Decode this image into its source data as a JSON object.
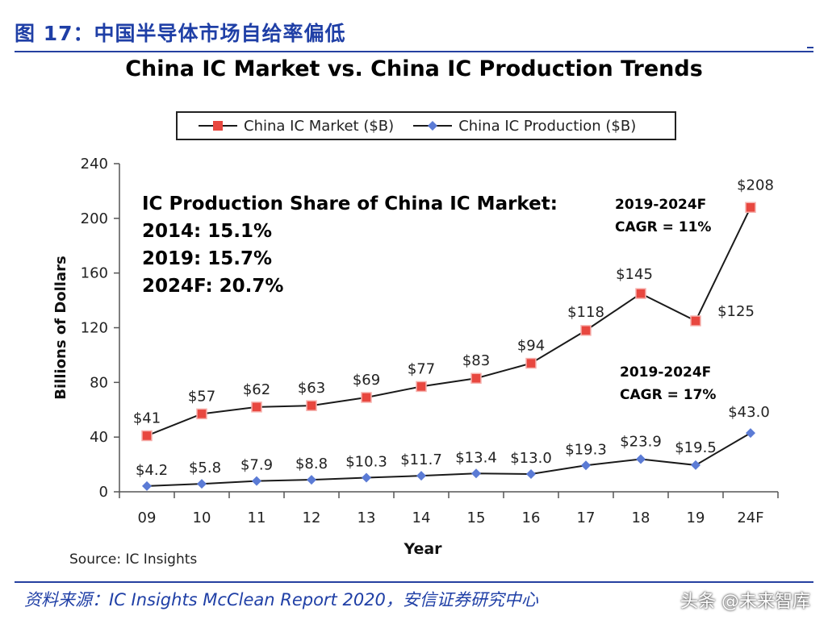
{
  "header": {
    "figure_label": "图 17：中国半导体市场自给率偏低"
  },
  "footer": {
    "source_note": "Source: IC Insights",
    "citation": "资料来源：IC Insights McClean Report 2020，安信证券研究中心",
    "watermark": "头条 @未来智库"
  },
  "annotations": {
    "share_title": "IC Production Share of China IC Market:",
    "share_2014": "2014: 15.1%",
    "share_2019": "2019: 15.7%",
    "share_2024": "2024F: 20.7%",
    "market_cagr_period": "2019-2024F",
    "market_cagr": "CAGR = 11%",
    "production_cagr_period": "2019-2024F",
    "production_cagr": "CAGR = 17%"
  },
  "colors": {
    "market": "#e8473f",
    "production": "#5b7bd5",
    "line": "#1a1a1a"
  },
  "chart_data": {
    "type": "line",
    "title": "China IC Market vs. China IC Production Trends",
    "xlabel": "Year",
    "ylabel": "Billions of Dollars",
    "ylim": [
      0,
      240
    ],
    "yticks": [
      0,
      40,
      80,
      120,
      160,
      200,
      240
    ],
    "categories": [
      "09",
      "10",
      "11",
      "12",
      "13",
      "14",
      "15",
      "16",
      "17",
      "18",
      "19",
      "24F"
    ],
    "legend_position": "top",
    "series": [
      {
        "name": "China IC Market ($B)",
        "marker": "square",
        "values": [
          41,
          57,
          62,
          63,
          69,
          77,
          83,
          94,
          118,
          145,
          125,
          208
        ],
        "labels": [
          "$41",
          "$57",
          "$62",
          "$63",
          "$69",
          "$77",
          "$83",
          "$94",
          "$118",
          "$145",
          "$125",
          "$208"
        ]
      },
      {
        "name": "China IC Production ($B)",
        "marker": "diamond",
        "values": [
          4.2,
          5.8,
          7.9,
          8.8,
          10.3,
          11.7,
          13.4,
          13.0,
          19.3,
          23.9,
          19.5,
          43.0
        ],
        "labels": [
          "$4.2",
          "$5.8",
          "$7.9",
          "$8.8",
          "$10.3",
          "$11.7",
          "$13.4",
          "$13.0",
          "$19.3",
          "$23.9",
          "$19.5",
          "$43.0"
        ]
      }
    ]
  }
}
